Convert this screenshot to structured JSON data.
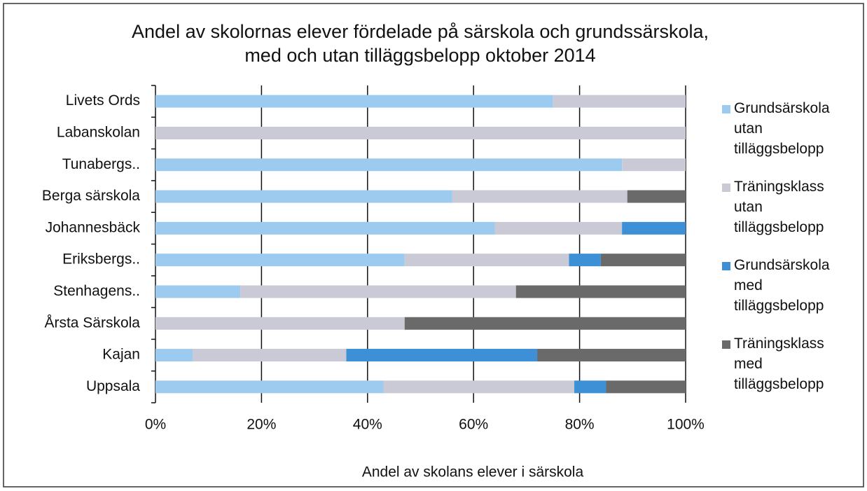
{
  "chart_data": {
    "type": "stacked_bar_horizontal",
    "title": "Andel av skolornas elever fördelade på särskola och grundssärskola,\nmed och utan tilläggsbelopp oktober 2014",
    "x_label": "Andel av skolans elever i särskola",
    "categories": [
      "Livets Ords",
      "Labanskolan",
      "Tunabergs..",
      "Berga särskola",
      "Johannesbäck",
      "Eriksbergs..",
      "Stenhagens..",
      "Årsta Särskola",
      "Kajan",
      "Uppsala"
    ],
    "series": [
      {
        "name": "Grundsärskola utan tilläggsbelopp",
        "color": "#9dcbef",
        "values": [
          75,
          0,
          88,
          56,
          64,
          47,
          16,
          0,
          7,
          43
        ]
      },
      {
        "name": "Träningsklass utan tilläggsbelopp",
        "color": "#cacad6",
        "values": [
          25,
          100,
          12,
          33,
          24,
          31,
          52,
          47,
          29,
          36
        ]
      },
      {
        "name": "Grundsärskola med tilläggsbelopp",
        "color": "#3d8fd6",
        "values": [
          0,
          0,
          0,
          0,
          12,
          6,
          0,
          0,
          36,
          6
        ]
      },
      {
        "name": "Träningsklass med tilläggsbelopp",
        "color": "#6a6a6a",
        "values": [
          0,
          0,
          0,
          11,
          0,
          16,
          32,
          53,
          28,
          15
        ]
      }
    ],
    "xlim": [
      0,
      100
    ],
    "xticks": [
      {
        "value": 0,
        "label": "0%"
      },
      {
        "value": 20,
        "label": "20%"
      },
      {
        "value": 40,
        "label": "40%"
      },
      {
        "value": 60,
        "label": "60%"
      },
      {
        "value": 80,
        "label": "80%"
      },
      {
        "value": 100,
        "label": "100%"
      }
    ],
    "grid": true,
    "legend": "right"
  }
}
